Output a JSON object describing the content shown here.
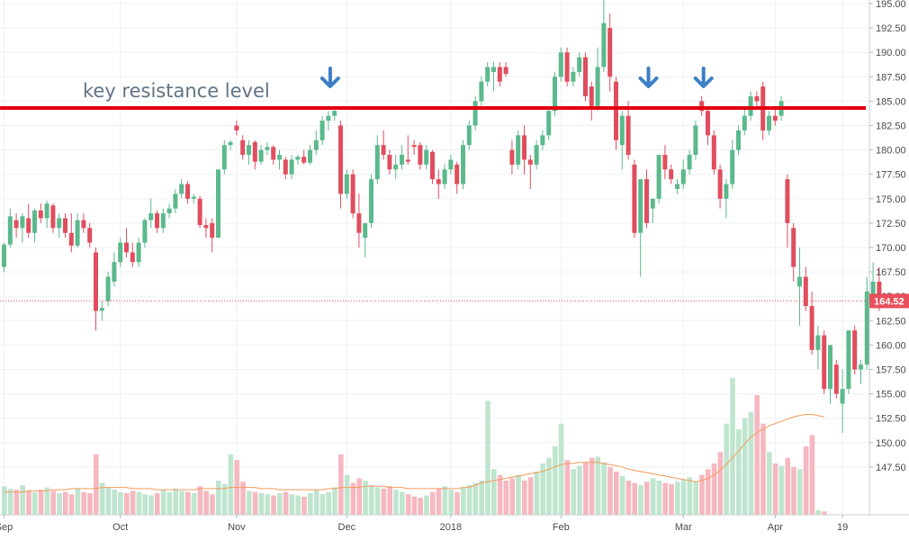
{
  "chart_data": {
    "type": "candlestick",
    "title": "",
    "xlabel": "",
    "ylabel": "",
    "ylim": [
      145,
      195
    ],
    "y_ticks": [
      147.5,
      150.0,
      152.5,
      155.0,
      157.5,
      160.0,
      162.5,
      165.0,
      167.5,
      170.0,
      172.5,
      175.0,
      177.5,
      180.0,
      182.5,
      185.0,
      187.5,
      190.0,
      192.5,
      195.0
    ],
    "x_tick_labels": [
      {
        "label": "Sep",
        "bar": 0
      },
      {
        "label": "Oct",
        "bar": 19
      },
      {
        "label": "Nov",
        "bar": 38
      },
      {
        "label": "Dec",
        "bar": 56
      },
      {
        "label": "2018",
        "bar": 73
      },
      {
        "label": "Feb",
        "bar": 91
      },
      {
        "label": "Mar",
        "bar": 111
      },
      {
        "label": "Apr",
        "bar": 126
      },
      {
        "label": "19",
        "bar": 137
      }
    ],
    "last_price": {
      "value": 164.52,
      "label": "164.52",
      "color": "#e8505b"
    },
    "resistance": {
      "value": 184.3,
      "label": "key resistance level",
      "color": "#e3000f"
    },
    "arrows_at_bars": [
      53,
      105,
      114
    ],
    "grid": true,
    "colors": {
      "up": "#5bb98c",
      "down": "#e04e5e",
      "up_volume": "#bfe5cf",
      "down_volume": "#f6b8c0",
      "volume_ma": "#f29b5c",
      "arrow": "#3d7fc4"
    },
    "candles": [
      {
        "o": 168.0,
        "h": 170.5,
        "l": 167.5,
        "c": 170.3
      },
      {
        "o": 170.3,
        "h": 174.0,
        "l": 170.0,
        "c": 173.2
      },
      {
        "o": 172.8,
        "h": 173.5,
        "l": 171.0,
        "c": 172.0
      },
      {
        "o": 172.0,
        "h": 173.5,
        "l": 170.5,
        "c": 173.2
      },
      {
        "o": 173.0,
        "h": 174.5,
        "l": 171.0,
        "c": 171.5
      },
      {
        "o": 171.5,
        "h": 174.0,
        "l": 170.5,
        "c": 173.8
      },
      {
        "o": 173.8,
        "h": 174.5,
        "l": 172.5,
        "c": 173.0
      },
      {
        "o": 173.0,
        "h": 174.8,
        "l": 172.0,
        "c": 174.5
      },
      {
        "o": 174.3,
        "h": 174.5,
        "l": 171.5,
        "c": 172.0
      },
      {
        "o": 172.0,
        "h": 173.5,
        "l": 171.0,
        "c": 173.0
      },
      {
        "o": 173.0,
        "h": 173.5,
        "l": 171.0,
        "c": 171.5
      },
      {
        "o": 171.5,
        "h": 173.5,
        "l": 169.5,
        "c": 170.2
      },
      {
        "o": 170.2,
        "h": 173.5,
        "l": 170.0,
        "c": 172.8
      },
      {
        "o": 172.8,
        "h": 173.5,
        "l": 171.5,
        "c": 172.0
      },
      {
        "o": 172.0,
        "h": 172.5,
        "l": 170.0,
        "c": 170.5
      },
      {
        "o": 169.5,
        "h": 170.0,
        "l": 161.5,
        "c": 163.5
      },
      {
        "o": 163.5,
        "h": 164.5,
        "l": 162.5,
        "c": 163.8
      },
      {
        "o": 164.5,
        "h": 167.5,
        "l": 164.0,
        "c": 167.0
      },
      {
        "o": 166.5,
        "h": 169.5,
        "l": 166.0,
        "c": 168.5
      },
      {
        "o": 168.5,
        "h": 171.0,
        "l": 168.0,
        "c": 170.5
      },
      {
        "o": 170.5,
        "h": 172.0,
        "l": 169.0,
        "c": 169.5
      },
      {
        "o": 169.5,
        "h": 170.5,
        "l": 168.0,
        "c": 168.5
      },
      {
        "o": 168.5,
        "h": 171.0,
        "l": 168.0,
        "c": 170.5
      },
      {
        "o": 170.5,
        "h": 173.0,
        "l": 170.0,
        "c": 172.8
      },
      {
        "o": 172.8,
        "h": 175.0,
        "l": 172.0,
        "c": 173.5
      },
      {
        "o": 173.5,
        "h": 173.8,
        "l": 171.5,
        "c": 172.0
      },
      {
        "o": 172.0,
        "h": 174.0,
        "l": 171.5,
        "c": 173.5
      },
      {
        "o": 173.5,
        "h": 174.5,
        "l": 173.0,
        "c": 174.0
      },
      {
        "o": 174.0,
        "h": 176.0,
        "l": 173.5,
        "c": 175.5
      },
      {
        "o": 175.5,
        "h": 177.0,
        "l": 175.0,
        "c": 176.5
      },
      {
        "o": 176.5,
        "h": 176.8,
        "l": 174.5,
        "c": 175.0
      },
      {
        "o": 175.0,
        "h": 175.5,
        "l": 174.5,
        "c": 175.2
      },
      {
        "o": 175.0,
        "h": 175.3,
        "l": 172.0,
        "c": 172.3
      },
      {
        "o": 172.3,
        "h": 173.0,
        "l": 171.0,
        "c": 172.0
      },
      {
        "o": 172.5,
        "h": 173.0,
        "l": 169.5,
        "c": 171.0
      },
      {
        "o": 171.0,
        "h": 177.5,
        "l": 171.0,
        "c": 178.0
      },
      {
        "o": 178.0,
        "h": 181.0,
        "l": 177.5,
        "c": 180.5
      },
      {
        "o": 180.5,
        "h": 181.0,
        "l": 180.0,
        "c": 180.8
      },
      {
        "o": 182.5,
        "h": 183.0,
        "l": 181.5,
        "c": 182.0
      },
      {
        "o": 181.0,
        "h": 181.5,
        "l": 179.0,
        "c": 179.5
      },
      {
        "o": 179.5,
        "h": 181.0,
        "l": 178.5,
        "c": 180.5
      },
      {
        "o": 180.8,
        "h": 181.0,
        "l": 178.0,
        "c": 178.8
      },
      {
        "o": 178.8,
        "h": 180.5,
        "l": 178.5,
        "c": 180.0
      },
      {
        "o": 180.0,
        "h": 180.8,
        "l": 179.5,
        "c": 180.3
      },
      {
        "o": 180.3,
        "h": 180.5,
        "l": 178.5,
        "c": 179.0
      },
      {
        "o": 179.0,
        "h": 180.0,
        "l": 178.0,
        "c": 179.5
      },
      {
        "o": 179.0,
        "h": 179.3,
        "l": 177.0,
        "c": 177.5
      },
      {
        "o": 177.5,
        "h": 179.5,
        "l": 177.0,
        "c": 179.0
      },
      {
        "o": 179.0,
        "h": 179.5,
        "l": 178.5,
        "c": 179.3
      },
      {
        "o": 179.3,
        "h": 180.0,
        "l": 178.5,
        "c": 178.7
      },
      {
        "o": 178.7,
        "h": 180.5,
        "l": 178.5,
        "c": 180.0
      },
      {
        "o": 180.0,
        "h": 182.0,
        "l": 179.5,
        "c": 181.0
      },
      {
        "o": 181.0,
        "h": 183.5,
        "l": 180.5,
        "c": 183.0
      },
      {
        "o": 183.0,
        "h": 184.0,
        "l": 182.0,
        "c": 183.5
      },
      {
        "o": 183.5,
        "h": 184.5,
        "l": 183.0,
        "c": 184.0
      },
      {
        "o": 182.5,
        "h": 183.0,
        "l": 174.0,
        "c": 175.5
      },
      {
        "o": 175.5,
        "h": 178.0,
        "l": 175.0,
        "c": 177.5
      },
      {
        "o": 177.5,
        "h": 178.0,
        "l": 173.0,
        "c": 173.5
      },
      {
        "o": 173.5,
        "h": 175.5,
        "l": 170.0,
        "c": 171.5
      },
      {
        "o": 171.0,
        "h": 172.5,
        "l": 169.0,
        "c": 172.5
      },
      {
        "o": 172.5,
        "h": 177.5,
        "l": 172.0,
        "c": 177.0
      },
      {
        "o": 177.0,
        "h": 181.5,
        "l": 176.5,
        "c": 180.5
      },
      {
        "o": 180.5,
        "h": 182.0,
        "l": 179.0,
        "c": 179.5
      },
      {
        "o": 179.5,
        "h": 180.0,
        "l": 177.5,
        "c": 178.0
      },
      {
        "o": 178.0,
        "h": 179.5,
        "l": 177.0,
        "c": 178.5
      },
      {
        "o": 178.5,
        "h": 180.5,
        "l": 178.0,
        "c": 179.5
      },
      {
        "o": 179.0,
        "h": 181.5,
        "l": 178.5,
        "c": 178.8
      },
      {
        "o": 180.5,
        "h": 181.0,
        "l": 179.5,
        "c": 180.3
      },
      {
        "o": 180.5,
        "h": 180.8,
        "l": 178.0,
        "c": 178.5
      },
      {
        "o": 178.5,
        "h": 180.5,
        "l": 178.0,
        "c": 180.0
      },
      {
        "o": 179.8,
        "h": 180.0,
        "l": 176.5,
        "c": 177.0
      },
      {
        "o": 177.0,
        "h": 178.0,
        "l": 175.0,
        "c": 176.5
      },
      {
        "o": 176.5,
        "h": 178.5,
        "l": 176.0,
        "c": 178.0
      },
      {
        "o": 178.0,
        "h": 179.5,
        "l": 177.5,
        "c": 179.0
      },
      {
        "o": 178.5,
        "h": 178.8,
        "l": 175.5,
        "c": 176.5
      },
      {
        "o": 176.5,
        "h": 181.0,
        "l": 176.0,
        "c": 180.5
      },
      {
        "o": 180.5,
        "h": 183.0,
        "l": 180.0,
        "c": 182.5
      },
      {
        "o": 182.5,
        "h": 185.5,
        "l": 182.0,
        "c": 185.0
      },
      {
        "o": 185.0,
        "h": 187.5,
        "l": 184.5,
        "c": 187.0
      },
      {
        "o": 187.0,
        "h": 189.0,
        "l": 186.5,
        "c": 188.5
      },
      {
        "o": 188.0,
        "h": 189.0,
        "l": 186.0,
        "c": 188.5
      },
      {
        "o": 188.5,
        "h": 189.0,
        "l": 186.5,
        "c": 187.0
      },
      {
        "o": 188.5,
        "h": 189.0,
        "l": 187.5,
        "c": 187.8
      },
      {
        "o": 180.0,
        "h": 181.0,
        "l": 177.5,
        "c": 178.5
      },
      {
        "o": 178.5,
        "h": 182.0,
        "l": 178.0,
        "c": 181.5
      },
      {
        "o": 181.5,
        "h": 182.5,
        "l": 177.5,
        "c": 179.0
      },
      {
        "o": 179.0,
        "h": 179.5,
        "l": 176.0,
        "c": 178.5
      },
      {
        "o": 178.5,
        "h": 181.0,
        "l": 178.0,
        "c": 180.5
      },
      {
        "o": 180.5,
        "h": 182.0,
        "l": 180.0,
        "c": 181.5
      },
      {
        "o": 181.5,
        "h": 184.5,
        "l": 181.0,
        "c": 184.0
      },
      {
        "o": 184.0,
        "h": 188.0,
        "l": 183.5,
        "c": 187.5
      },
      {
        "o": 187.5,
        "h": 190.5,
        "l": 187.0,
        "c": 190.0
      },
      {
        "o": 190.0,
        "h": 190.5,
        "l": 186.5,
        "c": 187.0
      },
      {
        "o": 187.0,
        "h": 188.5,
        "l": 186.5,
        "c": 188.0
      },
      {
        "o": 188.0,
        "h": 190.0,
        "l": 187.5,
        "c": 189.5
      },
      {
        "o": 189.5,
        "h": 190.0,
        "l": 185.0,
        "c": 185.5
      },
      {
        "o": 186.5,
        "h": 187.0,
        "l": 183.0,
        "c": 184.5
      },
      {
        "o": 184.5,
        "h": 190.5,
        "l": 184.0,
        "c": 188.5
      },
      {
        "o": 188.5,
        "h": 195.5,
        "l": 188.0,
        "c": 193.0
      },
      {
        "o": 192.5,
        "h": 194.0,
        "l": 186.0,
        "c": 187.5
      },
      {
        "o": 187.0,
        "h": 187.5,
        "l": 180.0,
        "c": 181.0
      },
      {
        "o": 180.5,
        "h": 184.0,
        "l": 178.0,
        "c": 183.5
      },
      {
        "o": 183.5,
        "h": 185.0,
        "l": 179.0,
        "c": 179.5
      },
      {
        "o": 178.5,
        "h": 179.0,
        "l": 171.0,
        "c": 171.5
      },
      {
        "o": 171.5,
        "h": 177.0,
        "l": 167.0,
        "c": 177.0
      },
      {
        "o": 177.0,
        "h": 178.0,
        "l": 172.0,
        "c": 172.5
      },
      {
        "o": 174.0,
        "h": 175.0,
        "l": 172.5,
        "c": 175.0
      },
      {
        "o": 175.0,
        "h": 179.5,
        "l": 174.5,
        "c": 179.5
      },
      {
        "o": 179.5,
        "h": 180.5,
        "l": 177.0,
        "c": 178.0
      },
      {
        "o": 178.0,
        "h": 178.5,
        "l": 176.5,
        "c": 177.0
      },
      {
        "o": 176.0,
        "h": 177.0,
        "l": 175.5,
        "c": 176.5
      },
      {
        "o": 176.5,
        "h": 179.0,
        "l": 176.0,
        "c": 178.0
      },
      {
        "o": 178.0,
        "h": 180.0,
        "l": 177.5,
        "c": 179.5
      },
      {
        "o": 179.5,
        "h": 183.0,
        "l": 179.0,
        "c": 182.5
      },
      {
        "o": 185.0,
        "h": 185.5,
        "l": 183.5,
        "c": 184.0
      },
      {
        "o": 184.0,
        "h": 184.5,
        "l": 180.5,
        "c": 181.5
      },
      {
        "o": 181.5,
        "h": 182.0,
        "l": 177.5,
        "c": 178.0
      },
      {
        "o": 178.0,
        "h": 178.5,
        "l": 174.0,
        "c": 175.0
      },
      {
        "o": 175.0,
        "h": 177.0,
        "l": 173.0,
        "c": 176.5
      },
      {
        "o": 176.5,
        "h": 181.0,
        "l": 176.0,
        "c": 180.0
      },
      {
        "o": 180.0,
        "h": 182.5,
        "l": 179.5,
        "c": 182.0
      },
      {
        "o": 182.0,
        "h": 184.5,
        "l": 181.5,
        "c": 183.5
      },
      {
        "o": 183.5,
        "h": 186.0,
        "l": 183.0,
        "c": 185.5
      },
      {
        "o": 185.5,
        "h": 186.0,
        "l": 184.5,
        "c": 185.0
      },
      {
        "o": 186.5,
        "h": 187.0,
        "l": 181.0,
        "c": 182.0
      },
      {
        "o": 182.0,
        "h": 184.0,
        "l": 181.5,
        "c": 183.5
      },
      {
        "o": 183.5,
        "h": 184.5,
        "l": 182.5,
        "c": 183.0
      },
      {
        "o": 183.5,
        "h": 185.5,
        "l": 183.0,
        "c": 185.0
      },
      {
        "o": 177.0,
        "h": 177.5,
        "l": 170.0,
        "c": 172.5
      },
      {
        "o": 172.0,
        "h": 172.5,
        "l": 166.5,
        "c": 168.0
      },
      {
        "o": 166.0,
        "h": 170.0,
        "l": 162.0,
        "c": 167.0
      },
      {
        "o": 167.0,
        "h": 168.0,
        "l": 163.5,
        "c": 164.0
      },
      {
        "o": 164.0,
        "h": 165.5,
        "l": 159.0,
        "c": 159.5
      },
      {
        "o": 159.5,
        "h": 162.0,
        "l": 157.5,
        "c": 161.0
      },
      {
        "o": 161.0,
        "h": 161.5,
        "l": 155.0,
        "c": 155.5
      },
      {
        "o": 155.5,
        "h": 160.0,
        "l": 154.0,
        "c": 160.0
      },
      {
        "o": 158.0,
        "h": 158.5,
        "l": 154.5,
        "c": 155.0
      },
      {
        "o": 154.0,
        "h": 157.5,
        "l": 151.0,
        "c": 155.5
      },
      {
        "o": 155.5,
        "h": 161.5,
        "l": 155.0,
        "c": 161.5
      },
      {
        "o": 161.5,
        "h": 162.0,
        "l": 157.0,
        "c": 157.5
      },
      {
        "o": 157.5,
        "h": 158.5,
        "l": 156.0,
        "c": 158.0
      },
      {
        "o": 158.0,
        "h": 167.0,
        "l": 157.5,
        "c": 165.5
      },
      {
        "o": 165.0,
        "h": 168.5,
        "l": 164.5,
        "c": 166.5
      },
      {
        "o": 166.5,
        "h": 168.0,
        "l": 163.5,
        "c": 164.0
      },
      {
        "o": 164.8,
        "h": 165.0,
        "l": 164.0,
        "c": 164.52
      }
    ],
    "volume_scale": [
      0,
      12
    ],
    "volume": [
      2.5,
      2.3,
      2.2,
      2.6,
      2.1,
      2.0,
      2.2,
      2.4,
      2.1,
      1.9,
      2.0,
      1.8,
      2.3,
      2.0,
      1.9,
      5.3,
      2.8,
      2.4,
      2.2,
      2.0,
      1.9,
      2.1,
      2.0,
      1.8,
      1.7,
      1.9,
      2.2,
      2.0,
      2.3,
      2.1,
      2.0,
      1.9,
      2.5,
      2.1,
      1.8,
      3.0,
      2.7,
      5.3,
      4.8,
      2.9,
      2.1,
      2.0,
      1.9,
      1.8,
      1.7,
      1.9,
      2.0,
      1.8,
      1.7,
      1.6,
      1.9,
      2.2,
      1.8,
      2.0,
      2.4,
      5.3,
      3.5,
      2.8,
      3.2,
      3.0,
      2.6,
      2.4,
      2.3,
      2.5,
      2.2,
      2.0,
      1.8,
      1.6,
      1.5,
      1.7,
      2.0,
      2.3,
      2.5,
      2.2,
      2.0,
      2.4,
      2.6,
      2.8,
      3.0,
      10.0,
      4.0,
      3.5,
      3.0,
      3.2,
      3.5,
      3.0,
      3.3,
      3.8,
      4.5,
      5.0,
      6.0,
      8.0,
      4.8,
      4.0,
      4.3,
      4.6,
      5.0,
      5.1,
      4.6,
      4.2,
      3.8,
      3.4,
      3.0,
      2.8,
      2.6,
      2.9,
      3.2,
      3.0,
      2.8,
      2.7,
      2.9,
      3.1,
      3.3,
      2.9,
      3.5,
      4.0,
      4.5,
      5.5,
      8.0,
      12.0,
      7.5,
      8.5,
      9.0,
      10.5,
      8.0,
      5.5,
      4.5,
      4.3,
      5.0,
      4.2,
      4.0,
      6.0,
      7.0,
      0.4,
      0.3
    ],
    "volume_ma": [
      2.0,
      2.0,
      2.0,
      2.0,
      2.1,
      2.1,
      2.1,
      2.1,
      2.2,
      2.2,
      2.2,
      2.3,
      2.3,
      2.3,
      2.3,
      2.3,
      2.4,
      2.4,
      2.4,
      2.4,
      2.4,
      2.3,
      2.3,
      2.3,
      2.3,
      2.2,
      2.2,
      2.2,
      2.2,
      2.2,
      2.2,
      2.2,
      2.3,
      2.3,
      2.3,
      2.3,
      2.3,
      2.4,
      2.4,
      2.4,
      2.4,
      2.4,
      2.3,
      2.3,
      2.3,
      2.2,
      2.2,
      2.2,
      2.2,
      2.2,
      2.2,
      2.2,
      2.2,
      2.3,
      2.3,
      2.4,
      2.4,
      2.4,
      2.4,
      2.5,
      2.5,
      2.5,
      2.5,
      2.4,
      2.4,
      2.4,
      2.3,
      2.3,
      2.3,
      2.3,
      2.3,
      2.3,
      2.3,
      2.3,
      2.3,
      2.4,
      2.4,
      2.6,
      2.8,
      2.9,
      3.0,
      3.1,
      3.2,
      3.3,
      3.4,
      3.5,
      3.6,
      3.7,
      3.8,
      4.0,
      4.2,
      4.4,
      4.5,
      4.5,
      4.6,
      4.6,
      4.6,
      4.6,
      4.5,
      4.4,
      4.3,
      4.2,
      4.0,
      3.9,
      3.8,
      3.7,
      3.6,
      3.5,
      3.4,
      3.3,
      3.2,
      3.1,
      3.0,
      2.9,
      3.0,
      3.2,
      3.5,
      3.9,
      4.4,
      5.0,
      5.6,
      6.2,
      6.8,
      7.2,
      7.5,
      7.8,
      8.0,
      8.2,
      8.4,
      8.6,
      8.7,
      8.8,
      8.8,
      8.7,
      8.6
    ]
  }
}
